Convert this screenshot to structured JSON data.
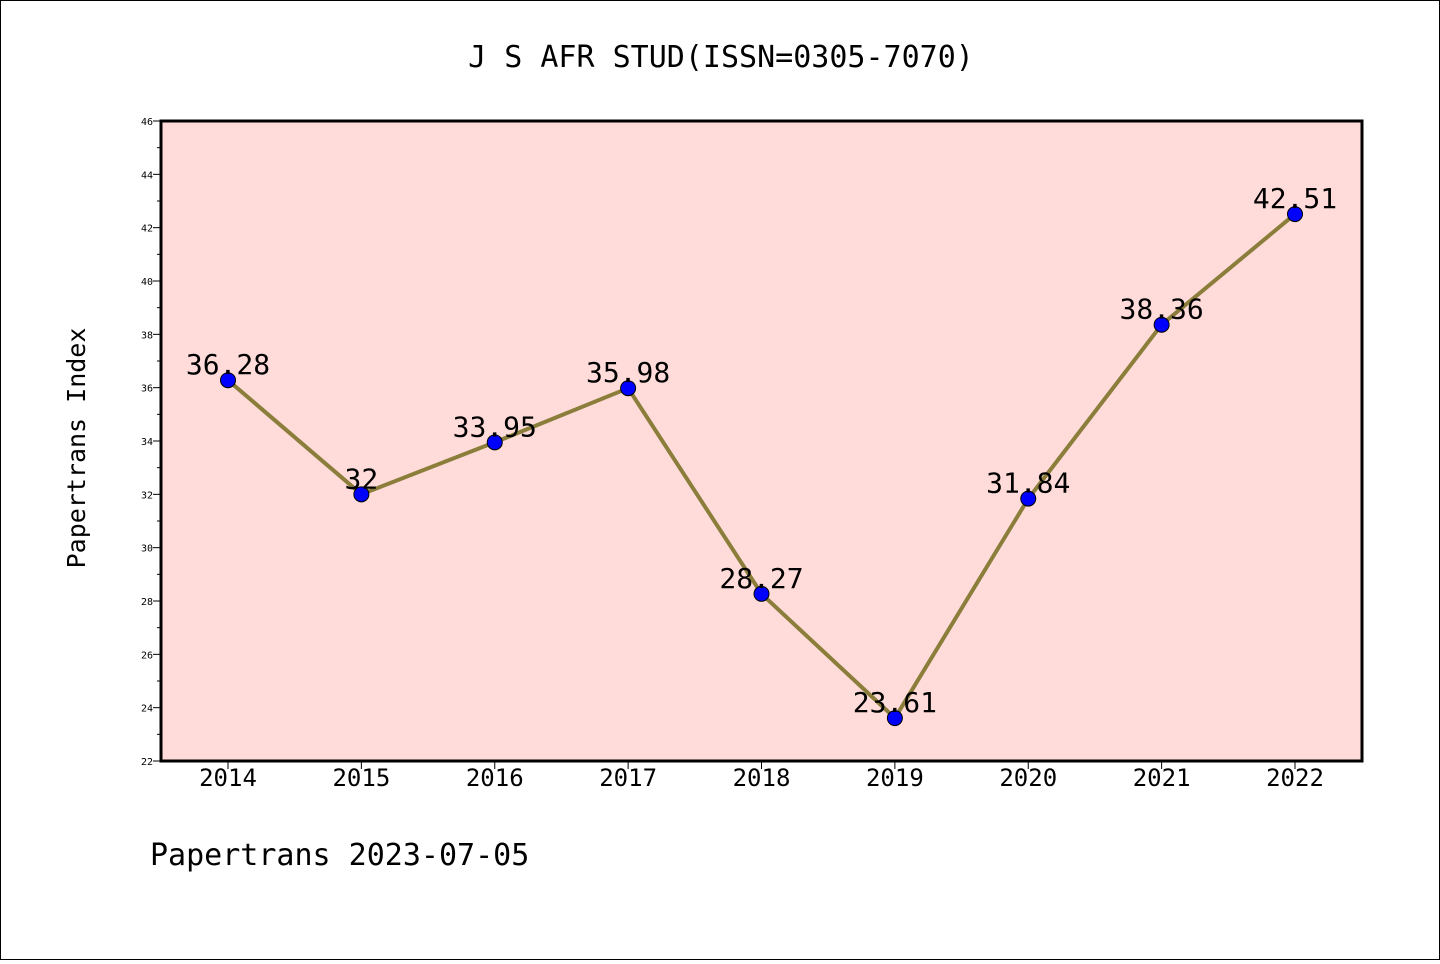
{
  "chart_data": {
    "type": "line",
    "title": "J S AFR STUD(ISSN=0305-7070)",
    "xlabel": "",
    "ylabel": "Papertrans Index",
    "x": [
      "2014",
      "2015",
      "2016",
      "2017",
      "2018",
      "2019",
      "2020",
      "2021",
      "2022"
    ],
    "values": [
      36.28,
      32,
      33.95,
      35.98,
      28.27,
      23.61,
      31.84,
      38.36,
      42.51
    ],
    "data_labels": [
      "36.28",
      "32",
      "33.95",
      "35.98",
      "28.27",
      "23.61",
      "31.84",
      "38.36",
      "42.51"
    ],
    "ylim": [
      22,
      46
    ],
    "yticks": [
      "22",
      "24",
      "26",
      "28",
      "30",
      "32",
      "34",
      "36",
      "38",
      "40",
      "42",
      "44",
      "46"
    ],
    "grid": false,
    "legend": "none",
    "colors": {
      "plot_background": "#ffdcda",
      "line": "#8b7d3a",
      "marker": "#0000ff"
    }
  },
  "footer": "Papertrans 2023-07-05"
}
